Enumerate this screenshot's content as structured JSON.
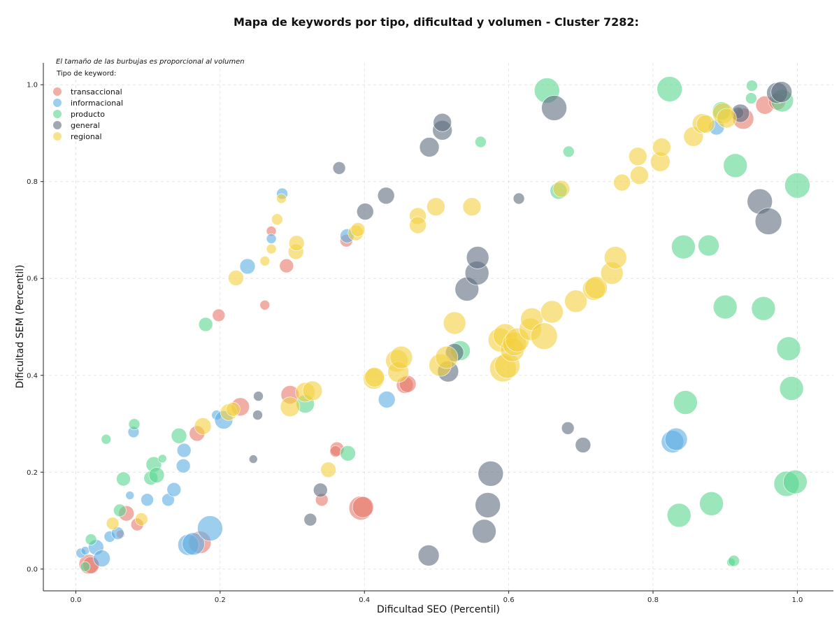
{
  "chart_data": {
    "type": "scatter",
    "title": "Mapa de keywords por tipo, dificultad y volumen - Cluster 7282:",
    "xlabel": "Dificultad SEO (Percentil)",
    "ylabel": "Dificultad SEM (Percentil)",
    "xlim": [
      -0.045,
      1.05
    ],
    "ylim": [
      -0.045,
      1.045
    ],
    "x_ticks": [
      "0.0",
      "0.2",
      "0.4",
      "0.6",
      "0.8",
      "1.0"
    ],
    "y_ticks": [
      "0.0",
      "0.2",
      "0.4",
      "0.6",
      "0.8",
      "1.0"
    ],
    "grid": true,
    "legend_placement": "top-left",
    "legend_note": "El tamaño de las burbujas es proporcional al volumen",
    "legend_title": "Tipo de keyword:",
    "series": [
      {
        "name": "transaccional",
        "color": "#e8786b",
        "points": [
          [
            0.018,
            0.01,
            14
          ],
          [
            0.021,
            0.008,
            12
          ],
          [
            0.07,
            0.115,
            11
          ],
          [
            0.085,
            0.092,
            9
          ],
          [
            0.062,
            0.072,
            6
          ],
          [
            0.172,
            0.055,
            16
          ],
          [
            0.168,
            0.28,
            11
          ],
          [
            0.198,
            0.524,
            9
          ],
          [
            0.228,
            0.335,
            13
          ],
          [
            0.262,
            0.545,
            7
          ],
          [
            0.271,
            0.698,
            7
          ],
          [
            0.292,
            0.626,
            10
          ],
          [
            0.297,
            0.36,
            13
          ],
          [
            0.341,
            0.143,
            9
          ],
          [
            0.362,
            0.248,
            10
          ],
          [
            0.36,
            0.243,
            8
          ],
          [
            0.375,
            0.678,
            9
          ],
          [
            0.395,
            0.126,
            17
          ],
          [
            0.398,
            0.128,
            15
          ],
          [
            0.456,
            0.38,
            12
          ],
          [
            0.46,
            0.382,
            12
          ],
          [
            0.925,
            0.93,
            15
          ],
          [
            0.955,
            0.958,
            13
          ],
          [
            0.972,
            0.965,
            12
          ]
        ]
      },
      {
        "name": "informacional",
        "color": "#5dade2",
        "points": [
          [
            0.007,
            0.033,
            7
          ],
          [
            0.013,
            0.038,
            6
          ],
          [
            0.028,
            0.045,
            11
          ],
          [
            0.036,
            0.022,
            12
          ],
          [
            0.047,
            0.067,
            8
          ],
          [
            0.058,
            0.074,
            9
          ],
          [
            0.075,
            0.152,
            6
          ],
          [
            0.08,
            0.283,
            8
          ],
          [
            0.099,
            0.143,
            9
          ],
          [
            0.128,
            0.143,
            9
          ],
          [
            0.136,
            0.164,
            10
          ],
          [
            0.149,
            0.213,
            10
          ],
          [
            0.15,
            0.245,
            10
          ],
          [
            0.156,
            0.05,
            15
          ],
          [
            0.163,
            0.052,
            16
          ],
          [
            0.186,
            0.084,
            18
          ],
          [
            0.195,
            0.318,
            7
          ],
          [
            0.205,
            0.308,
            13
          ],
          [
            0.238,
            0.625,
            11
          ],
          [
            0.271,
            0.682,
            7
          ],
          [
            0.286,
            0.775,
            8
          ],
          [
            0.376,
            0.688,
            10
          ],
          [
            0.431,
            0.35,
            12
          ],
          [
            0.827,
            0.263,
            16
          ],
          [
            0.832,
            0.268,
            16
          ],
          [
            0.888,
            0.912,
            11
          ]
        ]
      },
      {
        "name": "producto",
        "color": "#58d68d",
        "points": [
          [
            0.013,
            0.005,
            7
          ],
          [
            0.021,
            0.061,
            8
          ],
          [
            0.042,
            0.268,
            7
          ],
          [
            0.061,
            0.121,
            9
          ],
          [
            0.066,
            0.186,
            10
          ],
          [
            0.081,
            0.299,
            8
          ],
          [
            0.104,
            0.188,
            10
          ],
          [
            0.108,
            0.216,
            11
          ],
          [
            0.112,
            0.194,
            11
          ],
          [
            0.12,
            0.228,
            6
          ],
          [
            0.143,
            0.275,
            11
          ],
          [
            0.18,
            0.505,
            10
          ],
          [
            0.318,
            0.341,
            13
          ],
          [
            0.377,
            0.239,
            11
          ],
          [
            0.533,
            0.451,
            14
          ],
          [
            0.561,
            0.882,
            8
          ],
          [
            0.653,
            0.988,
            18
          ],
          [
            0.669,
            0.781,
            12
          ],
          [
            0.683,
            0.862,
            8
          ],
          [
            0.823,
            0.991,
            18
          ],
          [
            0.842,
            0.665,
            17
          ],
          [
            0.845,
            0.344,
            17
          ],
          [
            0.836,
            0.111,
            17
          ],
          [
            0.877,
            0.668,
            15
          ],
          [
            0.881,
            0.135,
            17
          ],
          [
            0.895,
            0.946,
            13
          ],
          [
            0.9,
            0.541,
            17
          ],
          [
            0.908,
            0.014,
            6
          ],
          [
            0.912,
            0.017,
            8
          ],
          [
            0.914,
            0.833,
            17
          ],
          [
            0.936,
            0.972,
            8
          ],
          [
            0.937,
            0.998,
            8
          ],
          [
            0.953,
            0.538,
            17
          ],
          [
            0.979,
            0.967,
            16
          ],
          [
            0.985,
            0.176,
            18
          ],
          [
            0.988,
            0.455,
            17
          ],
          [
            0.992,
            0.373,
            17
          ],
          [
            0.997,
            0.18,
            17
          ],
          [
            1.0,
            0.792,
            18
          ]
        ]
      },
      {
        "name": "general",
        "color": "#5d6d7e",
        "points": [
          [
            0.246,
            0.227,
            6
          ],
          [
            0.252,
            0.318,
            7
          ],
          [
            0.253,
            0.357,
            7
          ],
          [
            0.325,
            0.102,
            9
          ],
          [
            0.339,
            0.163,
            10
          ],
          [
            0.365,
            0.828,
            9
          ],
          [
            0.401,
            0.738,
            12
          ],
          [
            0.43,
            0.771,
            12
          ],
          [
            0.489,
            0.028,
            15
          ],
          [
            0.49,
            0.871,
            14
          ],
          [
            0.508,
            0.906,
            14
          ],
          [
            0.508,
            0.922,
            13
          ],
          [
            0.516,
            0.408,
            15
          ],
          [
            0.525,
            0.447,
            13
          ],
          [
            0.542,
            0.578,
            17
          ],
          [
            0.556,
            0.611,
            17
          ],
          [
            0.557,
            0.643,
            16
          ],
          [
            0.566,
            0.078,
            17
          ],
          [
            0.571,
            0.132,
            18
          ],
          [
            0.575,
            0.197,
            18
          ],
          [
            0.614,
            0.765,
            8
          ],
          [
            0.663,
            0.952,
            18
          ],
          [
            0.682,
            0.291,
            9
          ],
          [
            0.703,
            0.256,
            11
          ],
          [
            0.918,
            0.942,
            8
          ],
          [
            0.921,
            0.941,
            13
          ],
          [
            0.948,
            0.759,
            18
          ],
          [
            0.96,
            0.718,
            19
          ],
          [
            0.972,
            0.983,
            15
          ],
          [
            0.978,
            0.985,
            15
          ]
        ]
      },
      {
        "name": "regional",
        "color": "#f4d03f",
        "points": [
          [
            0.051,
            0.094,
            9
          ],
          [
            0.091,
            0.103,
            9
          ],
          [
            0.176,
            0.295,
            12
          ],
          [
            0.212,
            0.324,
            12
          ],
          [
            0.218,
            0.33,
            10
          ],
          [
            0.222,
            0.601,
            11
          ],
          [
            0.262,
            0.636,
            7
          ],
          [
            0.271,
            0.661,
            7
          ],
          [
            0.279,
            0.722,
            8
          ],
          [
            0.285,
            0.765,
            7
          ],
          [
            0.297,
            0.335,
            14
          ],
          [
            0.305,
            0.655,
            11
          ],
          [
            0.306,
            0.673,
            11
          ],
          [
            0.318,
            0.365,
            14
          ],
          [
            0.328,
            0.368,
            14
          ],
          [
            0.35,
            0.205,
            11
          ],
          [
            0.388,
            0.694,
            11
          ],
          [
            0.391,
            0.701,
            10
          ],
          [
            0.413,
            0.393,
            15
          ],
          [
            0.414,
            0.396,
            14
          ],
          [
            0.445,
            0.43,
            16
          ],
          [
            0.447,
            0.407,
            15
          ],
          [
            0.451,
            0.437,
            16
          ],
          [
            0.474,
            0.729,
            12
          ],
          [
            0.474,
            0.71,
            12
          ],
          [
            0.499,
            0.748,
            13
          ],
          [
            0.505,
            0.421,
            16
          ],
          [
            0.514,
            0.437,
            16
          ],
          [
            0.525,
            0.508,
            16
          ],
          [
            0.549,
            0.748,
            13
          ],
          [
            0.588,
            0.473,
            17
          ],
          [
            0.592,
            0.414,
            19
          ],
          [
            0.595,
            0.482,
            17
          ],
          [
            0.598,
            0.42,
            18
          ],
          [
            0.605,
            0.453,
            17
          ],
          [
            0.608,
            0.465,
            17
          ],
          [
            0.612,
            0.473,
            17
          ],
          [
            0.63,
            0.495,
            16
          ],
          [
            0.632,
            0.516,
            16
          ],
          [
            0.649,
            0.481,
            19
          ],
          [
            0.66,
            0.531,
            16
          ],
          [
            0.673,
            0.785,
            12
          ],
          [
            0.693,
            0.553,
            16
          ],
          [
            0.718,
            0.578,
            16
          ],
          [
            0.721,
            0.581,
            16
          ],
          [
            0.743,
            0.611,
            16
          ],
          [
            0.748,
            0.643,
            16
          ],
          [
            0.757,
            0.798,
            12
          ],
          [
            0.779,
            0.852,
            13
          ],
          [
            0.781,
            0.813,
            13
          ],
          [
            0.81,
            0.841,
            14
          ],
          [
            0.812,
            0.871,
            13
          ],
          [
            0.856,
            0.893,
            14
          ],
          [
            0.868,
            0.92,
            14
          ],
          [
            0.873,
            0.919,
            13
          ],
          [
            0.897,
            0.941,
            15
          ],
          [
            0.902,
            0.931,
            14
          ]
        ]
      }
    ]
  }
}
